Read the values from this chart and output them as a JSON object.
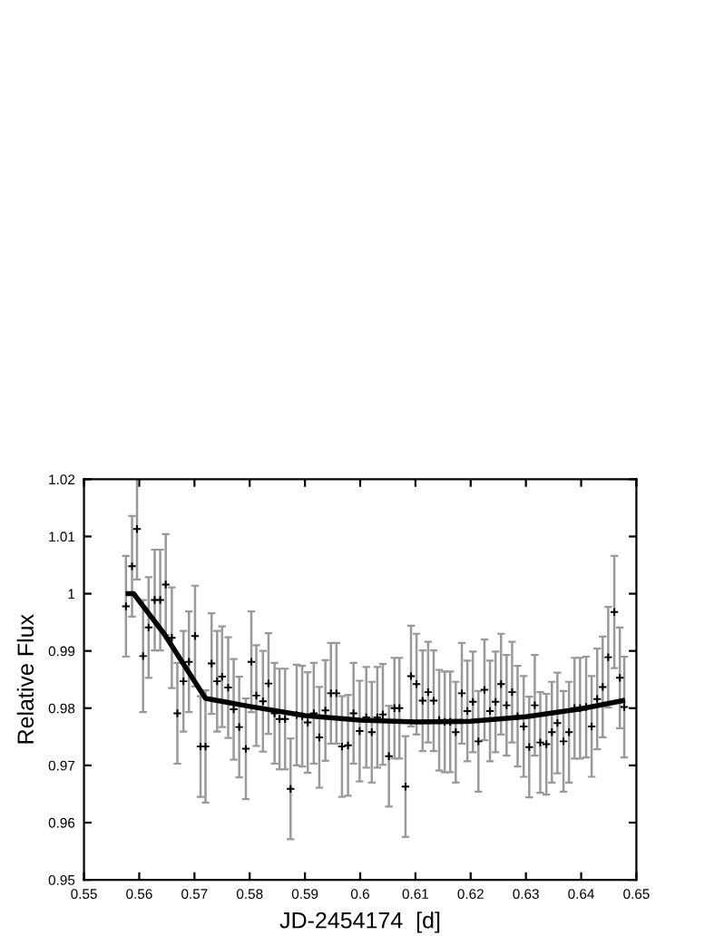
{
  "chart_data": {
    "type": "scatter",
    "xlabel": "JD-2454174  [d]",
    "ylabel": "Relative Flux",
    "xlim": [
      0.55,
      0.65
    ],
    "ylim": [
      0.95,
      1.02
    ],
    "xticks": [
      0.55,
      0.56,
      0.57,
      0.58,
      0.59,
      0.6,
      0.61,
      0.62,
      0.63,
      0.64,
      0.65
    ],
    "yticks": [
      0.95,
      0.96,
      0.97,
      0.98,
      0.99,
      1,
      1.01,
      1.02
    ],
    "grid": false,
    "legend": false,
    "series": [
      {
        "color": "#000000",
        "marker": "cross",
        "x": [
          0.5576,
          0.5587,
          0.5596,
          0.5607,
          0.5617,
          0.5628,
          0.5638,
          0.5648,
          0.5659,
          0.5669,
          0.568,
          0.569,
          0.5701,
          0.5711,
          0.572,
          0.5731,
          0.5741,
          0.575,
          0.5761,
          0.5771,
          0.5781,
          0.5793,
          0.5803,
          0.5812,
          0.5824,
          0.5834,
          0.5845,
          0.5854,
          0.5864,
          0.5874,
          0.5885,
          0.5895,
          0.5905,
          0.5916,
          0.5926,
          0.5937,
          0.5947,
          0.5957,
          0.5967,
          0.5978,
          0.5988,
          0.5999,
          0.6011,
          0.6021,
          0.6031,
          0.6041,
          0.6052,
          0.6062,
          0.6071,
          0.6082,
          0.6092,
          0.6102,
          0.6113,
          0.6123,
          0.6133,
          0.6143,
          0.6153,
          0.6163,
          0.6173,
          0.6184,
          0.6194,
          0.6204,
          0.6214,
          0.6225,
          0.6235,
          0.6245,
          0.6255,
          0.6265,
          0.6275,
          0.6285,
          0.6296,
          0.6306,
          0.6316,
          0.6326,
          0.6337,
          0.6347,
          0.6357,
          0.6368,
          0.6378,
          0.6388,
          0.6398,
          0.6409,
          0.6419,
          0.6429,
          0.6439,
          0.6449,
          0.646,
          0.647,
          0.6478
        ],
        "values": [
          0.9978,
          1.0048,
          1.0113,
          0.9891,
          0.9941,
          0.9989,
          0.9989,
          1.0016,
          0.9923,
          0.9791,
          0.9847,
          0.9881,
          0.9926,
          0.9733,
          0.9733,
          0.9878,
          0.9847,
          0.9855,
          0.9836,
          0.9798,
          0.9767,
          0.9729,
          0.9881,
          0.9822,
          0.9812,
          0.9843,
          0.9791,
          0.9781,
          0.9781,
          0.9659,
          0.9788,
          0.9786,
          0.9775,
          0.9791,
          0.9749,
          0.9796,
          0.9826,
          0.9826,
          0.9733,
          0.9735,
          0.9791,
          0.976,
          0.9784,
          0.9758,
          0.9784,
          0.9789,
          0.9716,
          0.98,
          0.98,
          0.9663,
          0.9856,
          0.9842,
          0.9813,
          0.9828,
          0.9813,
          0.9779,
          0.9776,
          0.9776,
          0.9758,
          0.9826,
          0.9795,
          0.9811,
          0.9742,
          0.9832,
          0.9795,
          0.9811,
          0.9842,
          0.9805,
          0.9828,
          0.9786,
          0.9768,
          0.9732,
          0.9805,
          0.974,
          0.9737,
          0.9758,
          0.9774,
          0.9742,
          0.9758,
          0.98,
          0.98,
          0.9802,
          0.9768,
          0.9816,
          0.9837,
          0.9889,
          0.9968,
          0.9853,
          0.9802
        ],
        "errors": [
          0.0088,
          0.0088,
          0.0088,
          0.0098,
          0.0088,
          0.0088,
          0.0088,
          0.0088,
          0.0088,
          0.0088,
          0.0088,
          0.0088,
          0.0088,
          0.0088,
          0.0098,
          0.0088,
          0.0088,
          0.0088,
          0.0088,
          0.0088,
          0.0088,
          0.0088,
          0.0088,
          0.0088,
          0.0088,
          0.0088,
          0.0088,
          0.0088,
          0.0088,
          0.0088,
          0.0088,
          0.0088,
          0.0088,
          0.0088,
          0.0088,
          0.0088,
          0.0088,
          0.0088,
          0.0088,
          0.0088,
          0.0088,
          0.0088,
          0.0088,
          0.0088,
          0.0088,
          0.0088,
          0.0088,
          0.0088,
          0.0088,
          0.0088,
          0.0088,
          0.0088,
          0.0088,
          0.0088,
          0.0088,
          0.0088,
          0.0088,
          0.0088,
          0.0088,
          0.0088,
          0.0088,
          0.0088,
          0.0088,
          0.0088,
          0.0088,
          0.0088,
          0.0088,
          0.0088,
          0.0088,
          0.0088,
          0.0088,
          0.0088,
          0.0088,
          0.0088,
          0.0088,
          0.0088,
          0.0088,
          0.0088,
          0.0088,
          0.0088,
          0.0088,
          0.0088,
          0.0088,
          0.0088,
          0.0088,
          0.0088,
          0.0098,
          0.0088,
          0.0088
        ]
      },
      {
        "type": "line",
        "color": "#000000",
        "line_style": "solid",
        "x": [
          0.558,
          0.559,
          0.5645,
          0.572,
          0.58,
          0.59,
          0.6,
          0.61,
          0.62,
          0.63,
          0.64,
          0.6475
        ],
        "values": [
          1.0,
          1.0,
          0.993,
          0.9817,
          0.9803,
          0.9787,
          0.9779,
          0.9776,
          0.9777,
          0.9785,
          0.9799,
          0.9813
        ]
      }
    ]
  }
}
